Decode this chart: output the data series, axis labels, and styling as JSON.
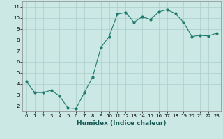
{
  "x": [
    0,
    1,
    2,
    3,
    4,
    5,
    6,
    7,
    8,
    9,
    10,
    11,
    12,
    13,
    14,
    15,
    16,
    17,
    18,
    19,
    20,
    21,
    22,
    23
  ],
  "y": [
    4.2,
    3.2,
    3.2,
    3.4,
    2.9,
    1.8,
    1.75,
    3.2,
    4.6,
    7.3,
    8.3,
    10.35,
    10.5,
    9.6,
    10.1,
    9.85,
    10.55,
    10.75,
    10.4,
    9.6,
    8.3,
    8.4,
    8.35,
    8.6
  ],
  "line_color": "#1e7a6e",
  "marker": "o",
  "marker_size": 2.0,
  "bg_color": "#cce8e4",
  "grid_color": "#aaceca",
  "xlabel": "Humidex (Indice chaleur)",
  "ylim": [
    1.5,
    11.5
  ],
  "xlim": [
    -0.5,
    23.5
  ],
  "yticks": [
    2,
    3,
    4,
    5,
    6,
    7,
    8,
    9,
    10,
    11
  ],
  "xticks": [
    0,
    1,
    2,
    3,
    4,
    5,
    6,
    7,
    8,
    9,
    10,
    11,
    12,
    13,
    14,
    15,
    16,
    17,
    18,
    19,
    20,
    21,
    22,
    23
  ],
  "label_fontsize": 6.5,
  "tick_fontsize": 5.0
}
